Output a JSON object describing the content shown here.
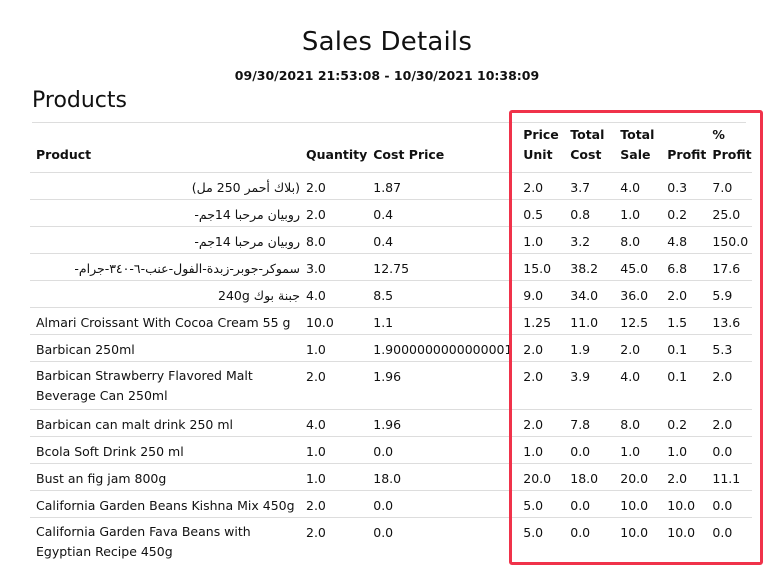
{
  "report": {
    "title": "Sales Details",
    "date_range": "09/30/2021 21:53:08 - 10/30/2021 10:38:09",
    "section": "Products"
  },
  "columns": {
    "product": "Product",
    "quantity": "Quantity",
    "cost_price": "Cost Price",
    "price_unit": "Price Unit",
    "total_cost": "Total Cost",
    "total_sale": "Total Sale",
    "profit": "Profit",
    "pct_profit": "% Profit"
  },
  "rows": [
    {
      "product": "(بلاك أحمر 250 مل)",
      "quantity": "2.0",
      "cost_price": "1.87",
      "price_unit": "2.0",
      "total_cost": "3.7",
      "total_sale": "4.0",
      "profit": "0.3",
      "pct_profit": "7.0",
      "rtl": true
    },
    {
      "product": "روبيان مرحبا 14جم-",
      "quantity": "2.0",
      "cost_price": "0.4",
      "price_unit": "0.5",
      "total_cost": "0.8",
      "total_sale": "1.0",
      "profit": "0.2",
      "pct_profit": "25.0",
      "rtl": true
    },
    {
      "product": "روبيان مرحبا 14جم-",
      "quantity": "8.0",
      "cost_price": "0.4",
      "price_unit": "1.0",
      "total_cost": "3.2",
      "total_sale": "8.0",
      "profit": "4.8",
      "pct_profit": "150.0",
      "rtl": true
    },
    {
      "product": "سموكر-جوبر-زبدة-الفول-عنب-٦-٣٤٠-جرام-",
      "quantity": "3.0",
      "cost_price": "12.75",
      "price_unit": "15.0",
      "total_cost": "38.2",
      "total_sale": "45.0",
      "profit": "6.8",
      "pct_profit": "17.6",
      "rtl": true
    },
    {
      "product": "جبنة بوك 240g",
      "quantity": "4.0",
      "cost_price": "8.5",
      "price_unit": "9.0",
      "total_cost": "34.0",
      "total_sale": "36.0",
      "profit": "2.0",
      "pct_profit": "5.9",
      "rtl": true
    },
    {
      "product": "Almari Croissant With Cocoa Cream 55 g",
      "quantity": "10.0",
      "cost_price": "1.1",
      "price_unit": "1.25",
      "total_cost": "11.0",
      "total_sale": "12.5",
      "profit": "1.5",
      "pct_profit": "13.6"
    },
    {
      "product": "Barbican 250ml",
      "quantity": "1.0",
      "cost_price": "1.9000000000000001",
      "price_unit": "2.0",
      "total_cost": "1.9",
      "total_sale": "2.0",
      "profit": "0.1",
      "pct_profit": "5.3"
    },
    {
      "product": "Barbican Strawberry Flavored Malt Beverage Can 250ml",
      "quantity": "2.0",
      "cost_price": "1.96",
      "price_unit": "2.0",
      "total_cost": "3.9",
      "total_sale": "4.0",
      "profit": "0.1",
      "pct_profit": "2.0",
      "tall": true
    },
    {
      "product": "Barbican can malt drink 250 ml",
      "quantity": "4.0",
      "cost_price": "1.96",
      "price_unit": "2.0",
      "total_cost": "7.8",
      "total_sale": "8.0",
      "profit": "0.2",
      "pct_profit": "2.0"
    },
    {
      "product": "Bcola Soft Drink 250 ml",
      "quantity": "1.0",
      "cost_price": "0.0",
      "price_unit": "1.0",
      "total_cost": "0.0",
      "total_sale": "1.0",
      "profit": "1.0",
      "pct_profit": "0.0"
    },
    {
      "product": "Bust an fig jam 800g",
      "quantity": "1.0",
      "cost_price": "18.0",
      "price_unit": "20.0",
      "total_cost": "18.0",
      "total_sale": "20.0",
      "profit": "2.0",
      "pct_profit": "11.1"
    },
    {
      "product": "California Garden Beans Kishna Mix 450g",
      "quantity": "2.0",
      "cost_price": "0.0",
      "price_unit": "5.0",
      "total_cost": "0.0",
      "total_sale": "10.0",
      "profit": "10.0",
      "pct_profit": "0.0"
    },
    {
      "product": "California Garden Fava Beans with Egyptian Recipe 450g",
      "quantity": "2.0",
      "cost_price": "0.0",
      "price_unit": "5.0",
      "total_cost": "0.0",
      "total_sale": "10.0",
      "profit": "10.0",
      "pct_profit": "0.0",
      "tall": true
    }
  ],
  "annotation": {
    "highlight_color": "#f0324a",
    "highlighted_columns": [
      "price_unit",
      "total_cost",
      "total_sale",
      "profit",
      "pct_profit"
    ]
  }
}
